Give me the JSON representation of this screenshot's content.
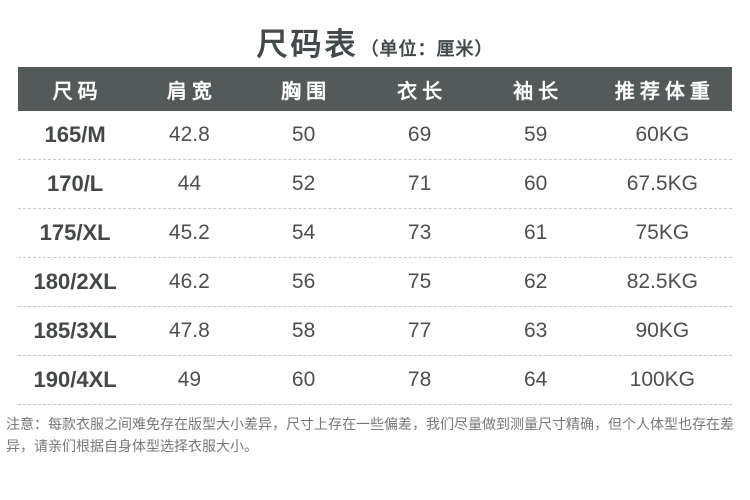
{
  "title": {
    "main": "尺码表",
    "unit": "（单位：厘米）"
  },
  "table": {
    "headers": [
      "尺码",
      "肩宽",
      "胸围",
      "衣长",
      "袖长",
      "推荐体重"
    ],
    "rows": [
      {
        "size": "165/M",
        "shoulder": "42.8",
        "chest": "50",
        "length": "69",
        "sleeve": "59",
        "weight": "60KG"
      },
      {
        "size": "170/L",
        "shoulder": "44",
        "chest": "52",
        "length": "71",
        "sleeve": "60",
        "weight": "67.5KG"
      },
      {
        "size": "175/XL",
        "shoulder": "45.2",
        "chest": "54",
        "length": "73",
        "sleeve": "61",
        "weight": "75KG"
      },
      {
        "size": "180/2XL",
        "shoulder": "46.2",
        "chest": "56",
        "length": "75",
        "sleeve": "62",
        "weight": "82.5KG"
      },
      {
        "size": "185/3XL",
        "shoulder": "47.8",
        "chest": "58",
        "length": "77",
        "sleeve": "63",
        "weight": "90KG"
      },
      {
        "size": "190/4XL",
        "shoulder": "49",
        "chest": "60",
        "length": "78",
        "sleeve": "64",
        "weight": "100KG"
      }
    ]
  },
  "note": "注意：每款衣服之间难免存在版型大小差异，尺寸上存在一些偏差，我们尽量做到测量尺寸精确，但个人体型也存在差异，请亲们根据自身体型选择衣服大小。",
  "colors": {
    "header_bg": "#545a5a",
    "header_text": "#ffffff",
    "body_text": "#4c4f50",
    "note_text": "#787878",
    "divider": "#c8c8c8"
  }
}
